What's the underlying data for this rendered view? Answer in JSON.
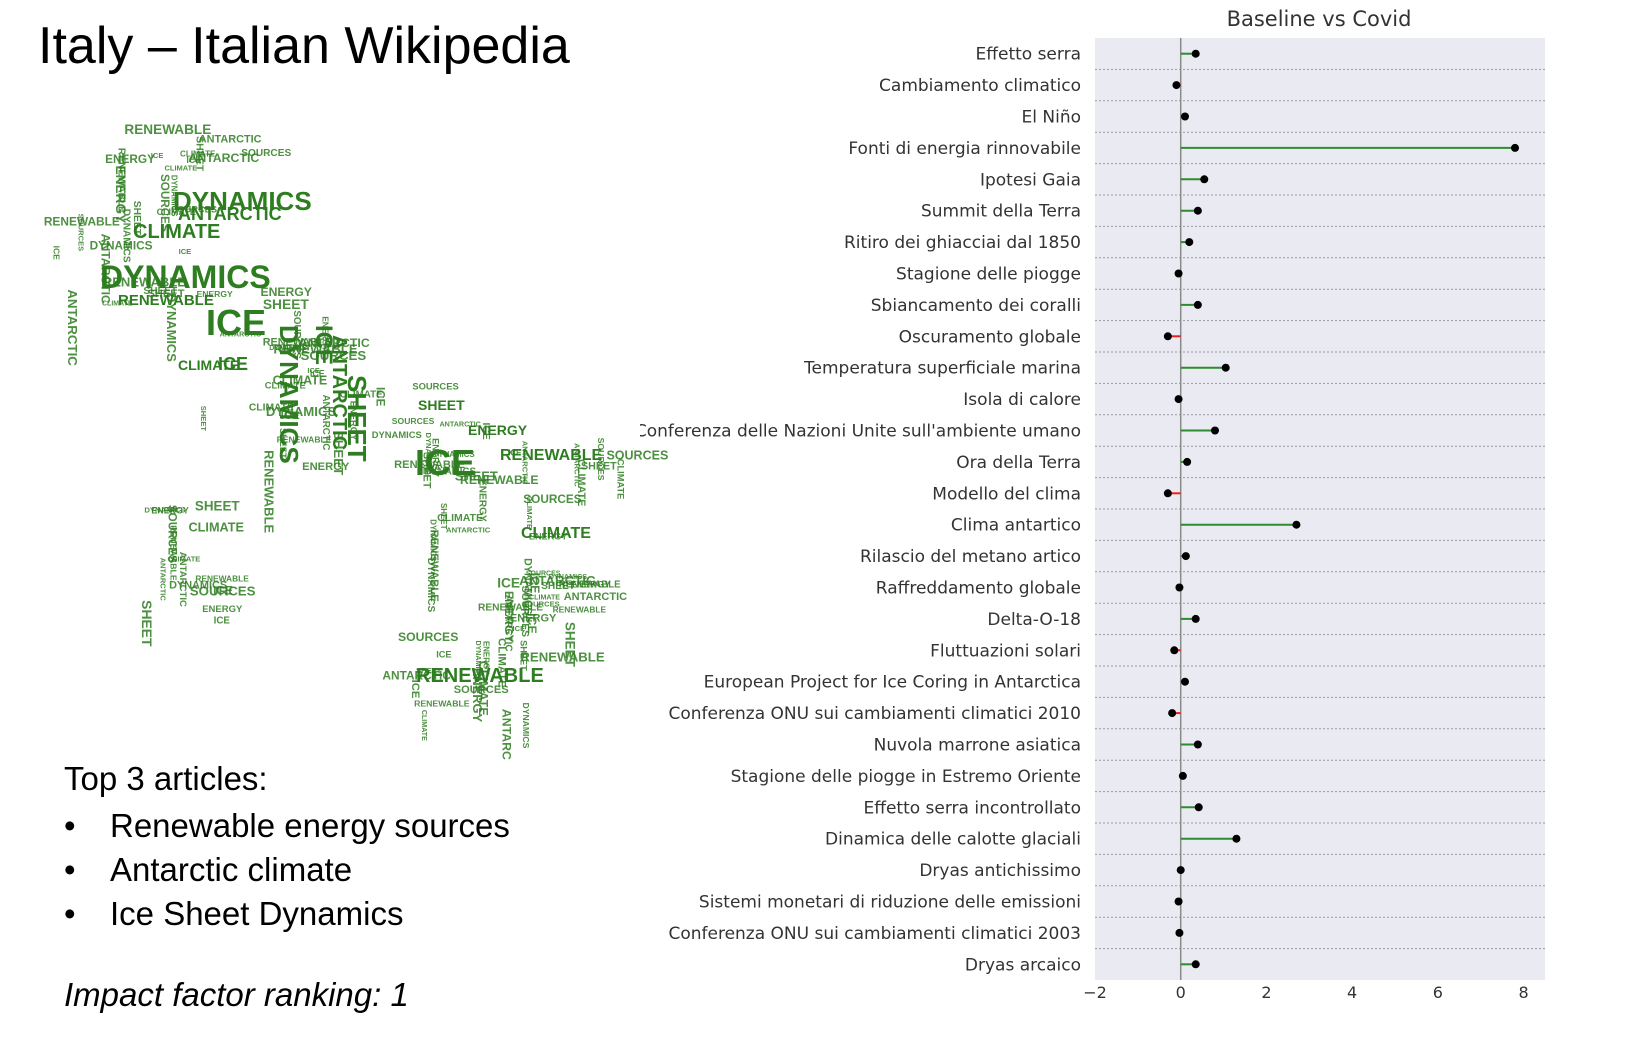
{
  "page": {
    "title": "Italy – Italian Wikipedia",
    "top_heading": "Top 3 articles:",
    "top_articles": [
      "Renewable energy sources",
      "Antarctic climate",
      "Ice Sheet Dynamics"
    ],
    "impact": "Impact  factor ranking: 1"
  },
  "wordcloud": {
    "words": [
      "DYNAMICS",
      "CLIMATE",
      "ICE",
      "SHEET",
      "ANTARCTIC",
      "RENEWABLE",
      "ENERGY",
      "SOURCES"
    ],
    "color": "#2e7d20"
  },
  "chart_data": {
    "type": "lollipop",
    "title": "Baseline vs Covid",
    "xlabel": "",
    "ylabel": "",
    "xlim": [
      -2,
      8.5
    ],
    "xticks": [
      -2,
      0,
      2,
      4,
      6,
      8
    ],
    "grid": true,
    "background": "#eaeaf2",
    "positive_color": "#2e8b2e",
    "negative_color": "#e8201f",
    "categories": [
      "Effetto serra",
      "Cambiamento climatico",
      "El Niño",
      "Fonti di energia rinnovabile",
      "Ipotesi Gaia",
      "Summit della Terra",
      "Ritiro dei ghiacciai dal 1850",
      "Stagione delle piogge",
      "Sbiancamento dei coralli",
      "Oscuramento globale",
      "Temperatura superficiale marina",
      "Isola di calore",
      "Conferenza delle Nazioni Unite sull'ambiente umano",
      "Ora della Terra",
      "Modello del clima",
      "Clima antartico",
      "Rilascio del metano artico",
      "Raffreddamento globale",
      "Delta-O-18",
      "Fluttuazioni solari",
      "European Project for Ice Coring in Antarctica",
      "Conferenza ONU sui cambiamenti climatici 2010",
      "Nuvola marrone asiatica",
      "Stagione delle piogge in Estremo Oriente",
      "Effetto serra incontrollato",
      "Dinamica delle calotte glaciali",
      "Dryas antichissimo",
      "Sistemi monetari di riduzione delle emissioni",
      "Conferenza ONU sui cambiamenti climatici 2003",
      "Dryas arcaico"
    ],
    "values": [
      0.35,
      -0.1,
      0.1,
      7.8,
      0.55,
      0.4,
      0.2,
      -0.05,
      0.4,
      -0.3,
      1.05,
      -0.05,
      0.8,
      0.15,
      -0.3,
      2.7,
      0.12,
      -0.03,
      0.35,
      -0.15,
      0.1,
      -0.2,
      0.4,
      0.05,
      0.42,
      1.3,
      0.0,
      -0.05,
      -0.03,
      0.35
    ]
  }
}
